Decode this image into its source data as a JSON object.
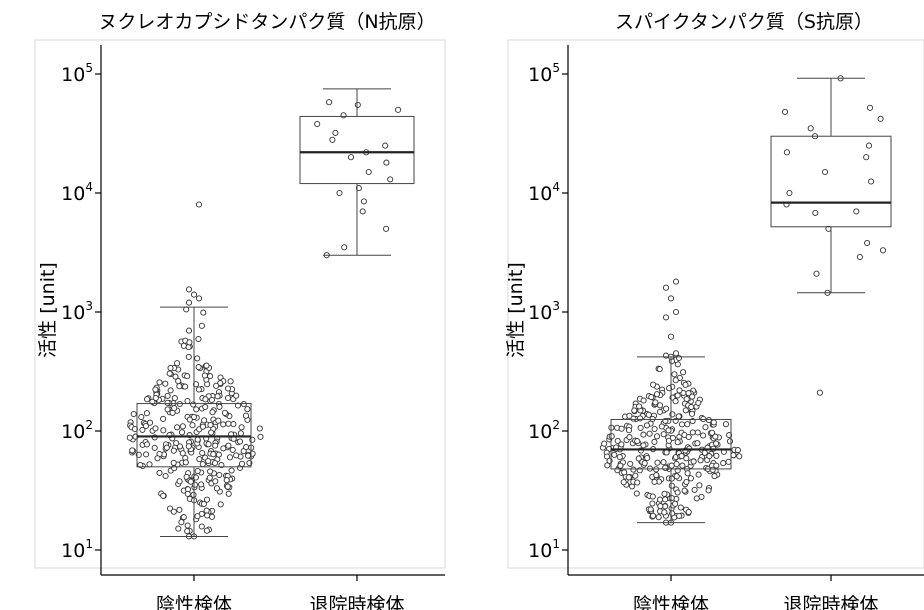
{
  "chart_data": [
    {
      "type": "box",
      "title": "ヌクレオカプシドタンパク質（N抗原）",
      "ylabel": "活性 [unit]",
      "yscale": "log",
      "ylim": [
        10,
        100000
      ],
      "yticks": [
        {
          "value": 10,
          "base": "10",
          "exp": "1"
        },
        {
          "value": 100,
          "base": "10",
          "exp": "2"
        },
        {
          "value": 1000,
          "base": "10",
          "exp": "3"
        },
        {
          "value": 10000,
          "base": "10",
          "exp": "4"
        },
        {
          "value": 100000,
          "base": "10",
          "exp": "5"
        }
      ],
      "categories": [
        "陰性検体",
        "退院時検体"
      ],
      "boxes": [
        {
          "category": "陰性検体",
          "whisker_low": 13,
          "q1": 50,
          "median": 90,
          "q3": 170,
          "whisker_high": 1100,
          "points": [
            13,
            13,
            8000,
            1550,
            1400,
            1300,
            1200
          ]
        },
        {
          "category": "退院時検体",
          "whisker_low": 3000,
          "q1": 12000,
          "median": 22000,
          "q3": 44000,
          "whisker_high": 75000,
          "points": [
            3000,
            3500,
            5000,
            7000,
            8500,
            10000,
            11000,
            13000,
            15000,
            18000,
            20000,
            22000,
            25000,
            28000,
            32000,
            38000,
            45000,
            50000,
            55000,
            58000
          ]
        }
      ]
    },
    {
      "type": "box",
      "title": "スパイクタンパク質（S抗原）",
      "ylabel": "活性 [unit]",
      "yscale": "log",
      "ylim": [
        10,
        100000
      ],
      "yticks": [
        {
          "value": 10,
          "base": "10",
          "exp": "1"
        },
        {
          "value": 100,
          "base": "10",
          "exp": "2"
        },
        {
          "value": 1000,
          "base": "10",
          "exp": "3"
        },
        {
          "value": 10000,
          "base": "10",
          "exp": "4"
        },
        {
          "value": 100000,
          "base": "10",
          "exp": "5"
        }
      ],
      "categories": [
        "陰性検体",
        "退院時検体"
      ],
      "boxes": [
        {
          "category": "陰性検体",
          "whisker_low": 17,
          "q1": 48,
          "median": 70,
          "q3": 125,
          "whisker_high": 420,
          "points": [
            17,
            17,
            1800,
            1600,
            1300,
            1000,
            900,
            620,
            450,
            430,
            420
          ]
        },
        {
          "category": "退院時検体",
          "whisker_low": 1450,
          "q1": 5200,
          "median": 8300,
          "q3": 30000,
          "whisker_high": 92000,
          "points": [
            210,
            1450,
            2100,
            2900,
            3300,
            3800,
            5000,
            6800,
            7000,
            8000,
            10000,
            12500,
            15000,
            20000,
            22000,
            25000,
            30000,
            35000,
            42000,
            48000,
            52000,
            92000
          ]
        }
      ]
    }
  ]
}
